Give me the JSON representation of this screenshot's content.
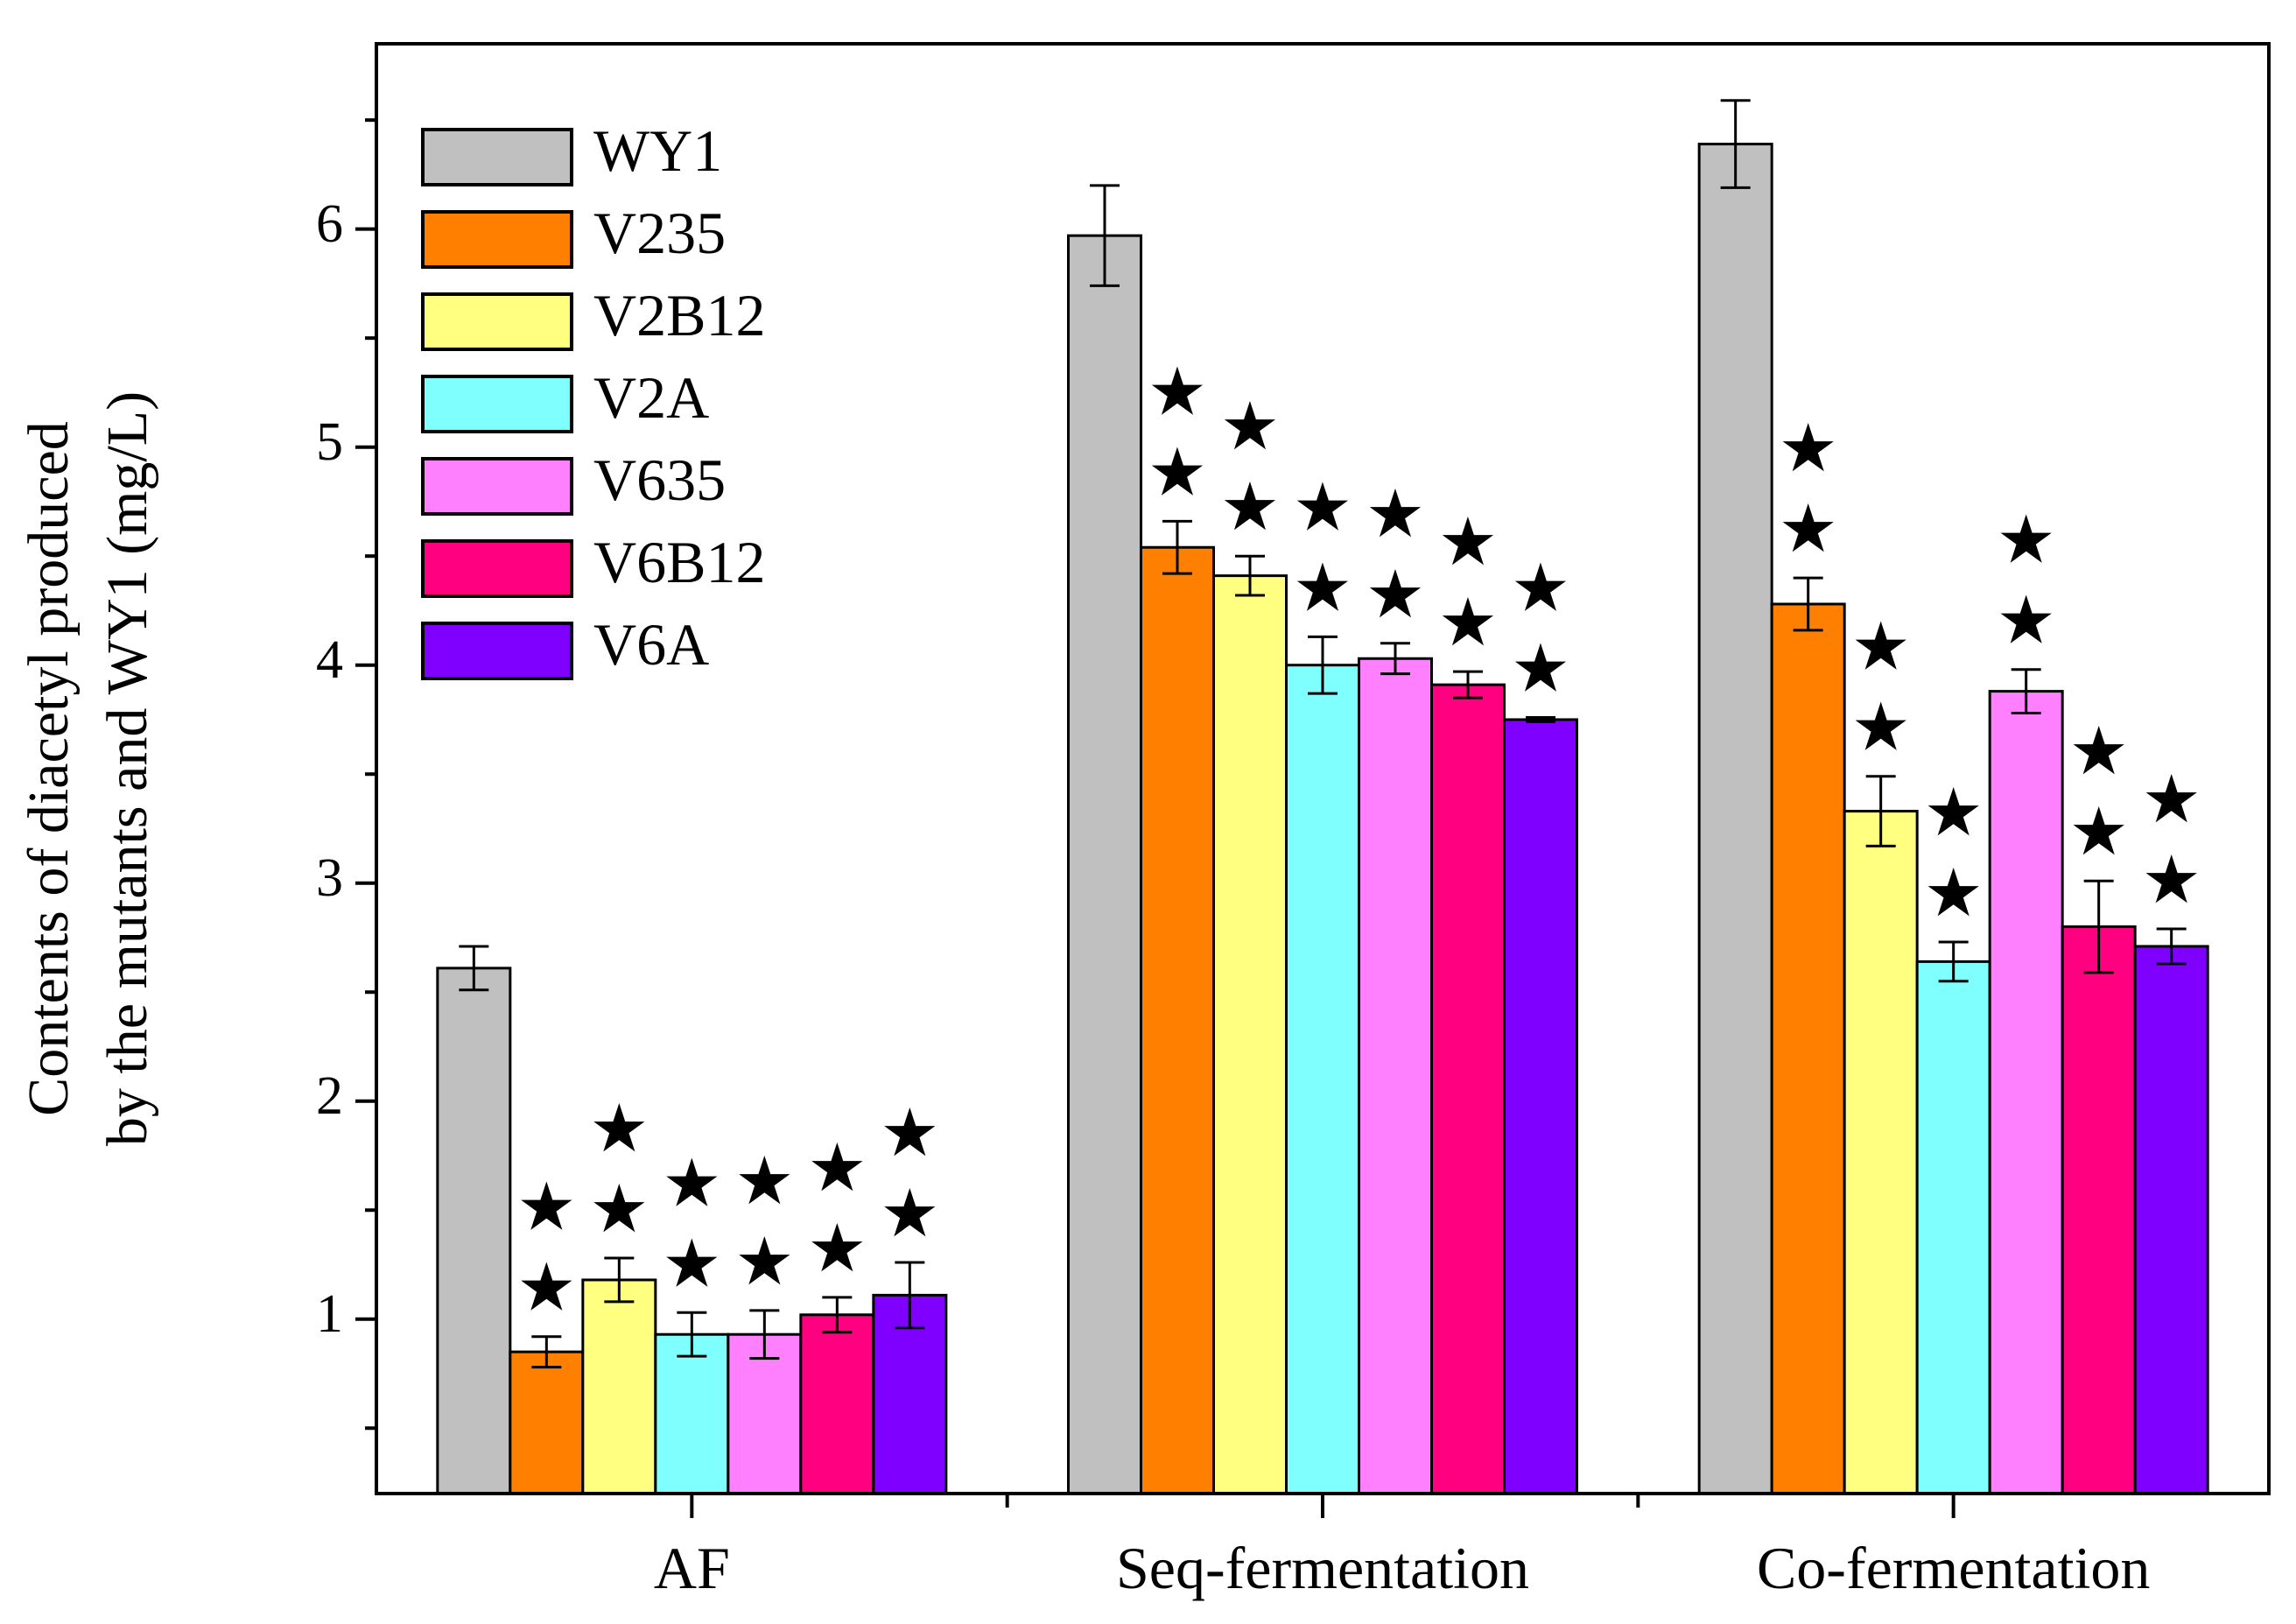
{
  "chart_data": {
    "type": "bar",
    "title": "",
    "xlabel": "",
    "ylabel": "",
    "ylabel_lines": [
      "Contents of diacetyl produced",
      "by the mutants and WY1 (mg/L)"
    ],
    "ylim": [
      0.2,
      6.85
    ],
    "yticks": [
      1,
      2,
      3,
      4,
      5,
      6
    ],
    "grid": false,
    "legend_position": "top-left",
    "categories": [
      "AF",
      "Seq-fermentation",
      "Co-fermentation"
    ],
    "significance_marker": "★",
    "series": [
      {
        "name": "WY1",
        "color": "#C0C0C0",
        "values": [
          2.61,
          5.97,
          6.39
        ],
        "errors": [
          0.1,
          0.23,
          0.2
        ],
        "stars": [
          0,
          0,
          0
        ]
      },
      {
        "name": "V235",
        "color": "#FF8000",
        "values": [
          0.85,
          4.54,
          4.28
        ],
        "errors": [
          0.07,
          0.12,
          0.12
        ],
        "stars": [
          2,
          2,
          2
        ]
      },
      {
        "name": "V2B12",
        "color": "#FFFF80",
        "values": [
          1.18,
          4.41,
          3.33
        ],
        "errors": [
          0.1,
          0.09,
          0.16
        ],
        "stars": [
          2,
          2,
          2
        ]
      },
      {
        "name": "V2A",
        "color": "#80FFFF",
        "values": [
          0.93,
          4.0,
          2.64
        ],
        "errors": [
          0.1,
          0.13,
          0.09
        ],
        "stars": [
          2,
          2,
          2
        ]
      },
      {
        "name": "V635",
        "color": "#FF80FF",
        "values": [
          0.93,
          4.03,
          3.88
        ],
        "errors": [
          0.11,
          0.07,
          0.1
        ],
        "stars": [
          2,
          2,
          2
        ]
      },
      {
        "name": "V6B12",
        "color": "#FF0080",
        "values": [
          1.02,
          3.91,
          2.8
        ],
        "errors": [
          0.08,
          0.06,
          0.21
        ],
        "stars": [
          2,
          2,
          2
        ]
      },
      {
        "name": "V6A",
        "color": "#8000FF",
        "values": [
          1.11,
          3.75,
          2.71
        ],
        "errors": [
          0.15,
          0.01,
          0.08
        ],
        "stars": [
          2,
          2,
          2
        ]
      }
    ]
  }
}
